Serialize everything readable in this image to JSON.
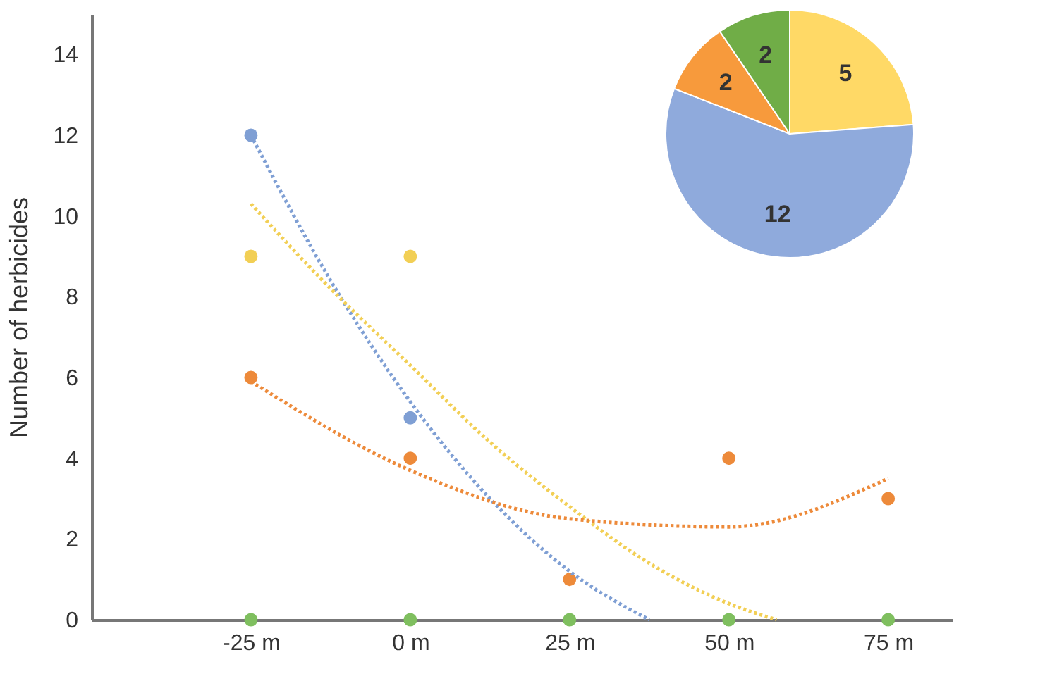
{
  "chart_data": [
    {
      "type": "scatter",
      "ylabel": "Number of herbicides",
      "xlim": [
        -50,
        85
      ],
      "xticks": [
        {
          "value": -25,
          "label": "-25 m"
        },
        {
          "value": 0,
          "label": "0 m"
        },
        {
          "value": 25,
          "label": "25 m"
        },
        {
          "value": 50,
          "label": "50 m"
        },
        {
          "value": 75,
          "label": "75 m"
        }
      ],
      "ylim": [
        0,
        15
      ],
      "yticks": [
        0,
        2,
        4,
        6,
        8,
        10,
        12,
        14
      ],
      "x": [
        -25,
        0,
        25,
        50,
        75
      ],
      "grid": false,
      "marker": "circle",
      "series": [
        {
          "color": "#7f9fd4",
          "values": [
            12,
            5,
            null,
            null,
            null
          ]
        },
        {
          "color": "#f2cf55",
          "values": [
            9,
            9,
            null,
            null,
            null
          ]
        },
        {
          "color": "#ed8a3a",
          "values": [
            6,
            4,
            1,
            4,
            3
          ]
        },
        {
          "color": "#7fbf5f",
          "values": [
            0,
            0,
            0,
            0,
            0
          ]
        },
        {
          "type": "line",
          "line_style": "dotted",
          "marker": "none",
          "color": "#7f9fd4",
          "x": [
            -25,
            -12.5,
            0,
            12.5,
            25,
            37.5
          ],
          "values": [
            12,
            8.4,
            5.4,
            3,
            1.2,
            0
          ]
        },
        {
          "type": "line",
          "line_style": "dotted",
          "marker": "none",
          "color": "#f2cf55",
          "x": [
            -25,
            -12.5,
            0,
            12.5,
            25,
            37.5,
            50,
            57.5
          ],
          "values": [
            10.3,
            8.2,
            6.3,
            4.4,
            2.8,
            1.4,
            0.4,
            0
          ]
        },
        {
          "type": "line",
          "line_style": "dotted",
          "marker": "none",
          "color": "#ed8a3a",
          "x": [
            -25,
            0,
            25,
            50,
            75
          ],
          "values": [
            5.9,
            3.7,
            2.5,
            2.3,
            3.5
          ]
        }
      ]
    },
    {
      "type": "pie",
      "categories": [
        null,
        null,
        null,
        null
      ],
      "values": [
        5,
        12,
        2,
        2
      ],
      "colors": [
        "#ffd966",
        "#8faadc",
        "#f79a3c",
        "#70ad47"
      ],
      "data_labels": true
    }
  ]
}
